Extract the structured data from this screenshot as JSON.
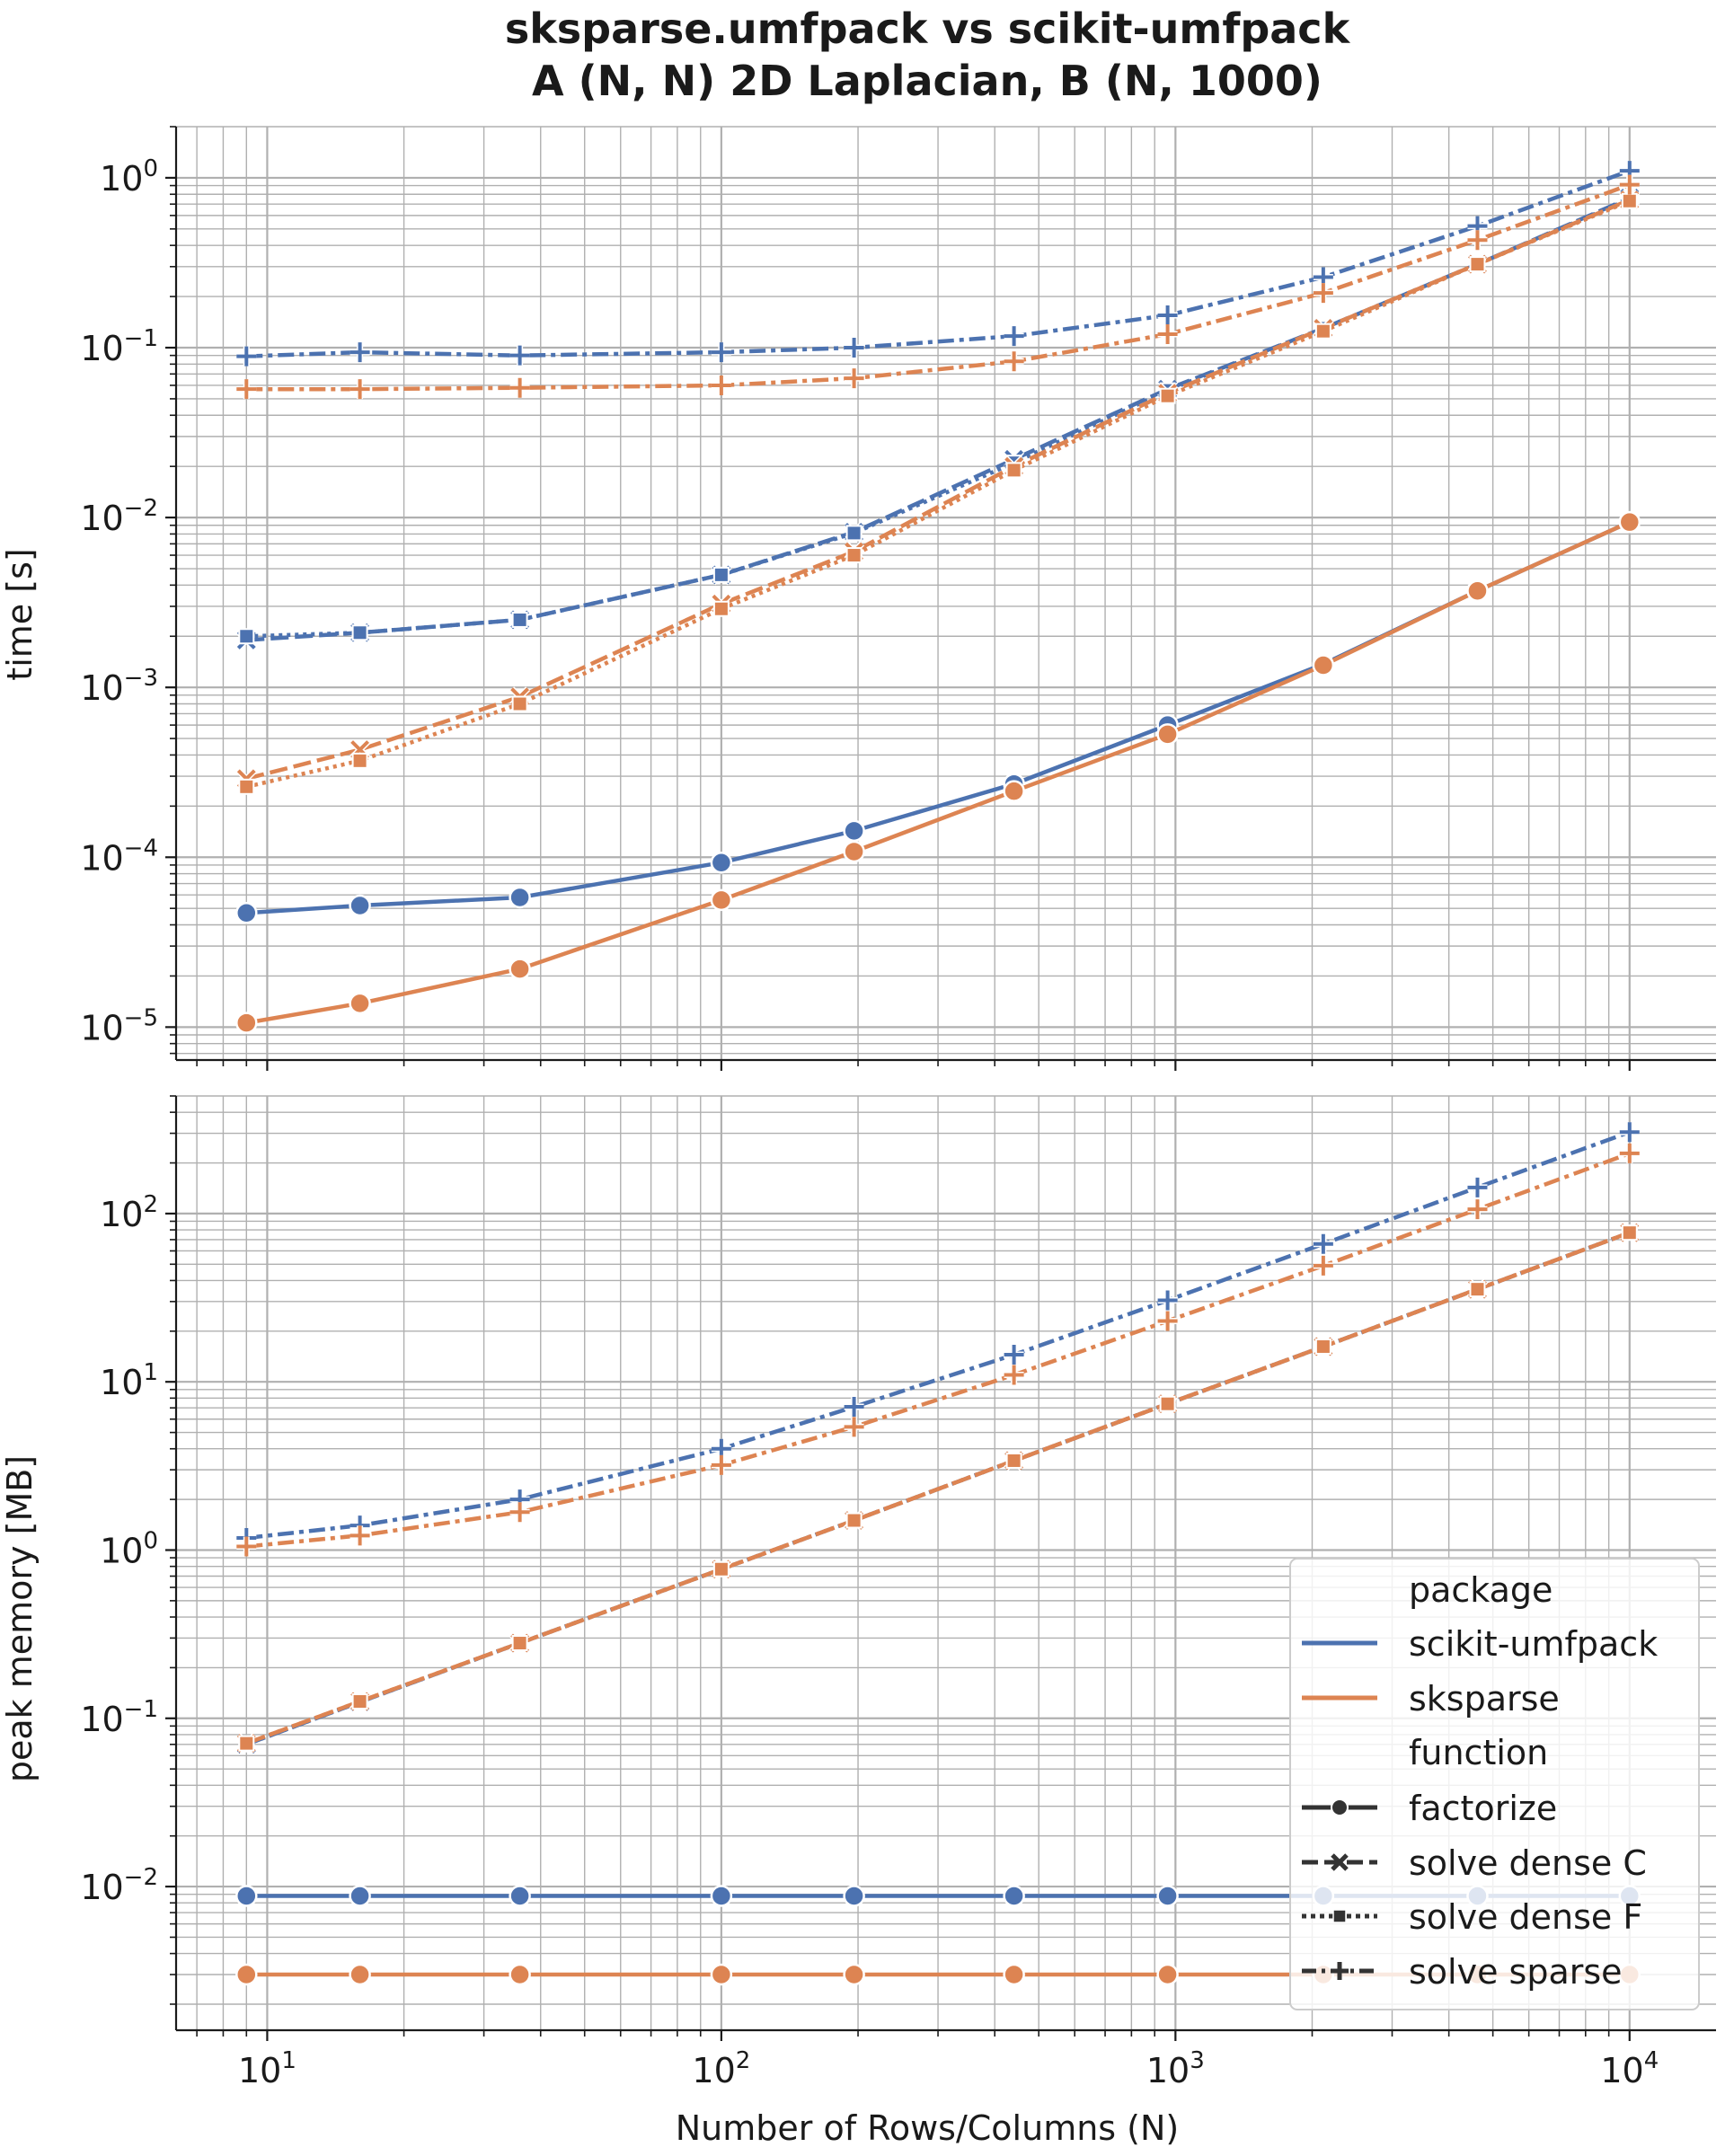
{
  "chart_data": {
    "type": "line",
    "title_line1": "sksparse.umfpack vs scikit-umfpack",
    "title_line2": "A (N, N) 2D Laplacian, B (N, 1000)",
    "xlabel": "Number of Rows/Columns (N)",
    "xscale": "log",
    "xlim": [
      6.3,
      15500
    ],
    "x": [
      9,
      16,
      36,
      100,
      196,
      441,
      961,
      2116,
      4624,
      10000
    ],
    "x_ticks": [
      {
        "value": 10,
        "base": "10",
        "exp": "1"
      },
      {
        "value": 100,
        "base": "10",
        "exp": "2"
      },
      {
        "value": 1000,
        "base": "10",
        "exp": "3"
      },
      {
        "value": 10000,
        "base": "10",
        "exp": "4"
      }
    ],
    "colors": {
      "scikit-umfpack": "#4c72b0",
      "sksparse": "#dd8452"
    },
    "panels": [
      {
        "id": "time",
        "ylabel": "time [s]",
        "ylim": [
          6.4e-06,
          2.0
        ],
        "y_ticks": [
          {
            "value": 1e-05,
            "base": "10",
            "exp": "−5"
          },
          {
            "value": 0.0001,
            "base": "10",
            "exp": "−4"
          },
          {
            "value": 0.001,
            "base": "10",
            "exp": "−3"
          },
          {
            "value": 0.01,
            "base": "10",
            "exp": "−2"
          },
          {
            "value": 0.1,
            "base": "10",
            "exp": "−1"
          },
          {
            "value": 1,
            "base": "10",
            "exp": "0"
          }
        ],
        "series": [
          {
            "package": "scikit-umfpack",
            "function": "factorize",
            "values": [
              4.7e-05,
              5.2e-05,
              5.8e-05,
              9.3e-05,
              0.000143,
              0.00027,
              0.0006,
              0.00137,
              0.0037,
              0.0094
            ]
          },
          {
            "package": "sksparse",
            "function": "factorize",
            "values": [
              1.06e-05,
              1.38e-05,
              2.2e-05,
              5.6e-05,
              0.000108,
              0.000245,
              0.00053,
              0.00135,
              0.0037,
              0.0094
            ]
          },
          {
            "package": "scikit-umfpack",
            "function": "solve dense C",
            "values": [
              0.0019,
              0.0021,
              0.0025,
              0.0046,
              0.0082,
              0.022,
              0.057,
              0.13,
              0.31,
              0.76
            ]
          },
          {
            "package": "scikit-umfpack",
            "function": "solve dense F",
            "values": [
              0.002,
              0.0021,
              0.0025,
              0.0046,
              0.0081,
              0.021,
              0.056,
              0.13,
              0.31,
              0.75
            ]
          },
          {
            "package": "sksparse",
            "function": "solve dense C",
            "values": [
              0.00029,
              0.00043,
              0.00088,
              0.0031,
              0.0063,
              0.02,
              0.054,
              0.13,
              0.31,
              0.74
            ]
          },
          {
            "package": "sksparse",
            "function": "solve dense F",
            "values": [
              0.00026,
              0.00037,
              0.0008,
              0.0029,
              0.006,
              0.019,
              0.052,
              0.125,
              0.31,
              0.73
            ]
          },
          {
            "package": "scikit-umfpack",
            "function": "solve sparse",
            "values": [
              0.089,
              0.094,
              0.09,
              0.094,
              0.1,
              0.117,
              0.155,
              0.26,
              0.52,
              1.1
            ]
          },
          {
            "package": "sksparse",
            "function": "solve sparse",
            "values": [
              0.057,
              0.057,
              0.058,
              0.06,
              0.066,
              0.083,
              0.12,
              0.21,
              0.43,
              0.91
            ]
          }
        ]
      },
      {
        "id": "memory",
        "ylabel": "peak memory [MB]",
        "ylim": [
          0.0014,
          500
        ],
        "y_ticks": [
          {
            "value": 0.01,
            "base": "10",
            "exp": "−2"
          },
          {
            "value": 0.1,
            "base": "10",
            "exp": "−1"
          },
          {
            "value": 1,
            "base": "10",
            "exp": "0"
          },
          {
            "value": 10,
            "base": "10",
            "exp": "1"
          },
          {
            "value": 100,
            "base": "10",
            "exp": "2"
          }
        ],
        "series": [
          {
            "package": "scikit-umfpack",
            "function": "factorize",
            "values": [
              0.0088,
              0.0088,
              0.0088,
              0.0088,
              0.0088,
              0.0088,
              0.0088,
              0.0088,
              0.0088,
              0.0088
            ]
          },
          {
            "package": "sksparse",
            "function": "factorize",
            "values": [
              0.003,
              0.003,
              0.003,
              0.003,
              0.003,
              0.003,
              0.003,
              0.003,
              0.003,
              0.003
            ]
          },
          {
            "package": "scikit-umfpack",
            "function": "solve dense C",
            "values": [
              0.07,
              0.125,
              0.28,
              0.77,
              1.5,
              3.4,
              7.4,
              16.2,
              35.5,
              77
            ]
          },
          {
            "package": "scikit-umfpack",
            "function": "solve dense F",
            "values": [
              0.07,
              0.125,
              0.28,
              0.77,
              1.5,
              3.4,
              7.4,
              16.2,
              35.5,
              77
            ]
          },
          {
            "package": "sksparse",
            "function": "solve dense C",
            "values": [
              0.071,
              0.126,
              0.28,
              0.77,
              1.5,
              3.4,
              7.4,
              16.2,
              35.5,
              77
            ]
          },
          {
            "package": "sksparse",
            "function": "solve dense F",
            "values": [
              0.071,
              0.126,
              0.28,
              0.77,
              1.5,
              3.4,
              7.4,
              16.2,
              35.5,
              77
            ]
          },
          {
            "package": "scikit-umfpack",
            "function": "solve sparse",
            "values": [
              1.18,
              1.4,
              2.0,
              4.0,
              7.1,
              14.5,
              30.5,
              66,
              143,
              305
            ]
          },
          {
            "package": "sksparse",
            "function": "solve sparse",
            "values": [
              1.05,
              1.22,
              1.68,
              3.2,
              5.4,
              11,
              23,
              49,
              106,
              228
            ]
          }
        ]
      }
    ],
    "legend": {
      "location": "lower-right",
      "package_header": "package",
      "packages": [
        "scikit-umfpack",
        "sksparse"
      ],
      "function_header": "function",
      "functions": [
        "factorize",
        "solve dense C",
        "solve dense F",
        "solve sparse"
      ]
    }
  }
}
